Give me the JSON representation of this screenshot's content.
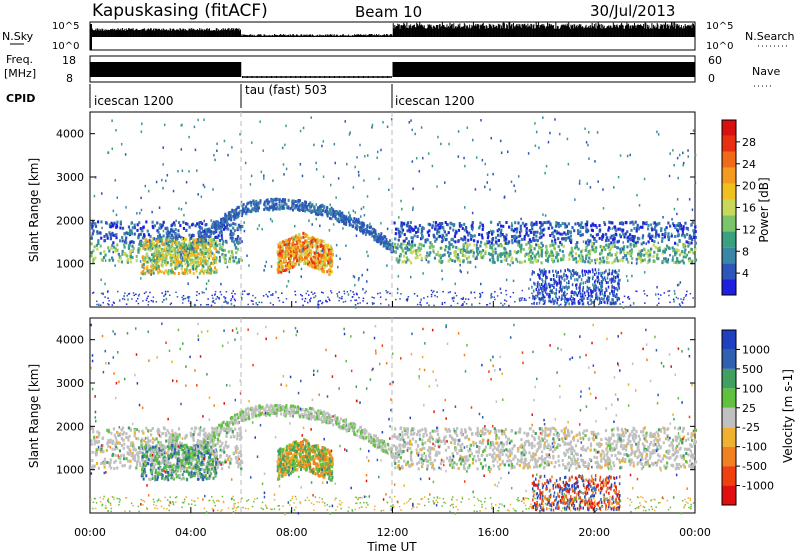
{
  "header": {
    "station": "Kapuskasing (fitACF)",
    "beam": "Beam 10",
    "date": "30/Jul/2013"
  },
  "top_panels": {
    "nsky_label": "N.Sky",
    "nsky_ticks": [
      "10^5",
      "10^0"
    ],
    "nsearch_label": "N.Search",
    "nsearch_ticks": [
      "10^5",
      "10^0"
    ],
    "freq_label": "Freq.",
    "freq_unit": "[MHz]",
    "freq_ticks": [
      "18",
      "8"
    ],
    "nave_label": "Nave",
    "nave_ticks": [
      "60",
      "0"
    ],
    "cpid_label": "CPID"
  },
  "chart_data": [
    {
      "type": "heatmap",
      "title": "",
      "xlabel": "",
      "ylabel": "Slant Range [km]",
      "xlim": [
        "00:00",
        "00:00"
      ],
      "ylim": [
        0,
        4500
      ],
      "yticks": [
        1000,
        2000,
        3000,
        4000
      ],
      "colorbar": {
        "label": "Power [dB]",
        "ticks": [
          4,
          8,
          12,
          16,
          20,
          24,
          28
        ],
        "colors": [
          "#1f1fe0",
          "#2c56b8",
          "#3b86a6",
          "#3aa080",
          "#7ac46a",
          "#c8d85a",
          "#f0c020",
          "#f59a20",
          "#f06a18",
          "#e83010",
          "#d81010"
        ]
      },
      "cpid_segments": [
        {
          "label": "icescan 1200",
          "start_h": 0,
          "end_h": 6
        },
        {
          "label": "tau (fast) 503",
          "start_h": 6,
          "end_h": 12
        },
        {
          "label": "icescan 1200",
          "start_h": 12,
          "end_h": 24
        }
      ]
    },
    {
      "type": "heatmap",
      "title": "",
      "xlabel": "Time UT",
      "ylabel": "Slant Range [km]",
      "xticks": [
        "00:00",
        "04:00",
        "08:00",
        "12:00",
        "16:00",
        "20:00",
        "00:00"
      ],
      "ylim": [
        0,
        4500
      ],
      "yticks": [
        1000,
        2000,
        3000,
        4000
      ],
      "colorbar": {
        "label": "Velocity [m s-1]",
        "ticks": [
          "1000",
          "500",
          "100",
          "25",
          "-25",
          "-100",
          "-500",
          "-1000"
        ],
        "colors": [
          "#2040c0",
          "#3060b0",
          "#40a060",
          "#60c040",
          "#c0c0c0",
          "#f0b030",
          "#f08020",
          "#f04010",
          "#e01010"
        ]
      }
    }
  ],
  "axis": {
    "xlabel": "Time UT"
  },
  "colors": {
    "blue": "#2c56b8",
    "green": "#3aa080",
    "yellow": "#d8d040",
    "orange": "#f08a20",
    "red": "#e02010",
    "gray": "#c0c0c0"
  }
}
